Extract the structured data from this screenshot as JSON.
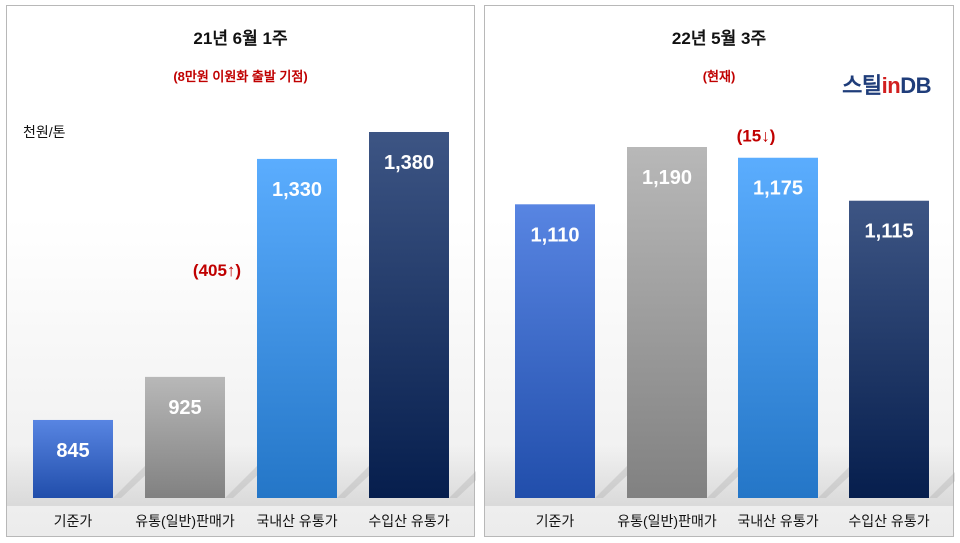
{
  "logo": {
    "part1": "스틸",
    "part2": "in",
    "part3": "DB"
  },
  "chart_data": [
    {
      "type": "bar",
      "title": "21년 6월 1주",
      "subtitle": "(8만원 이원화 출발 기점)",
      "ylabel": "천원/톤",
      "categories": [
        "기준가",
        "유통(일반)판매가",
        "국내산 유통가",
        "수입산 유통가"
      ],
      "values": [
        845,
        925,
        1330,
        1380
      ],
      "value_labels": [
        "845",
        "925",
        "1,330",
        "1,380"
      ],
      "colors": [
        "#3a67c4",
        "#9a9a9a",
        "#3d8fe0",
        "#1f3766"
      ],
      "annotations": [
        {
          "text": "(405↑)",
          "near_category": "국내산 유통가"
        }
      ]
    },
    {
      "type": "bar",
      "title": "22년 5월 3주",
      "subtitle": "(현재)",
      "categories": [
        "기준가",
        "유통(일반)판매가",
        "국내산 유통가",
        "수입산 유통가"
      ],
      "values": [
        1110,
        1190,
        1175,
        1115
      ],
      "value_labels": [
        "1,110",
        "1,190",
        "1,175",
        "1,115"
      ],
      "colors": [
        "#3a67c4",
        "#9a9a9a",
        "#3d8fe0",
        "#1f3766"
      ],
      "annotations": [
        {
          "text": "(15↓)",
          "near_category": "국내산 유통가"
        }
      ]
    }
  ]
}
